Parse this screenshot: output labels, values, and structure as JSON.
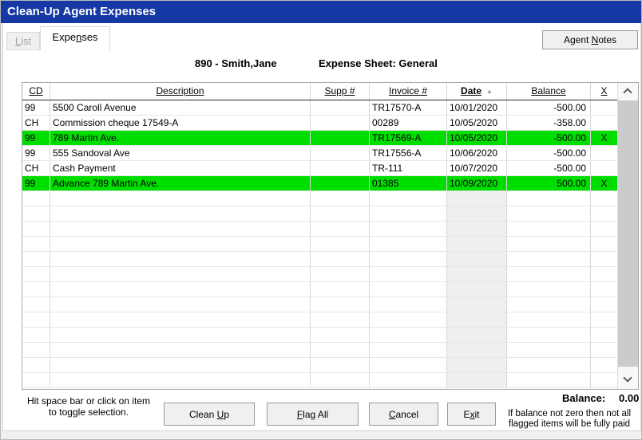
{
  "window": {
    "title": "Clean-Up Agent Expenses"
  },
  "tabs": [
    {
      "label": {
        "pre": "",
        "key": "L",
        "post": "ist"
      },
      "state": "disabled"
    },
    {
      "label": {
        "pre": "Expe",
        "key": "n",
        "post": "ses"
      },
      "state": "active"
    }
  ],
  "agent_notes": {
    "label": {
      "pre": "Agent ",
      "key": "N",
      "post": "otes"
    }
  },
  "header": {
    "agent": "890 - Smith,Jane",
    "sheet": "Expense Sheet: General"
  },
  "table": {
    "columns": [
      {
        "key": "cd",
        "label": "CD"
      },
      {
        "key": "description",
        "label": "Description"
      },
      {
        "key": "supp",
        "label": "Supp #"
      },
      {
        "key": "invoice",
        "label": "Invoice #"
      },
      {
        "key": "date",
        "label": "Date",
        "bold": true,
        "sorted": "asc"
      },
      {
        "key": "balance",
        "label": "Balance"
      },
      {
        "key": "x",
        "label": "X"
      }
    ],
    "rows": [
      {
        "cd": "99",
        "description": "5500 Caroll Avenue",
        "supp": "",
        "invoice": "TR17570-A",
        "date": "10/01/2020",
        "balance": "-500.00",
        "x": "",
        "highlighted": false,
        "focused": false
      },
      {
        "cd": "CH",
        "description": "Commission cheque 17549-A",
        "supp": "",
        "invoice": "00289",
        "date": "10/05/2020",
        "balance": "-358.00",
        "x": "",
        "highlighted": false,
        "focused": false
      },
      {
        "cd": "99",
        "description": "789 Martin Ave.",
        "supp": "",
        "invoice": "TR17569-A",
        "date": "10/05/2020",
        "balance": "-500.00",
        "x": "X",
        "highlighted": true,
        "focused": true
      },
      {
        "cd": "99",
        "description": "555 Sandoval Ave",
        "supp": "",
        "invoice": "TR17556-A",
        "date": "10/06/2020",
        "balance": "-500.00",
        "x": "",
        "highlighted": false,
        "focused": false
      },
      {
        "cd": "CH",
        "description": "Cash Payment",
        "supp": "",
        "invoice": "TR-111",
        "date": "10/07/2020",
        "balance": "-500.00",
        "x": "",
        "highlighted": false,
        "focused": false
      },
      {
        "cd": "99",
        "description": "Advance 789 Martin Ave.",
        "supp": "",
        "invoice": "01385",
        "date": "10/09/2020",
        "balance": "500.00",
        "x": "X",
        "highlighted": true,
        "focused": false
      }
    ],
    "empty_row_count": 13
  },
  "footer": {
    "hint_line1": "Hit space bar or click on item",
    "hint_line2": "to toggle selection.",
    "buttons": [
      {
        "label": {
          "pre": "Clean ",
          "key": "U",
          "post": "p"
        }
      },
      {
        "label": {
          "pre": "",
          "key": "F",
          "post": "lag All"
        }
      },
      {
        "label": {
          "pre": "",
          "key": "C",
          "post": "ancel"
        }
      },
      {
        "label": {
          "pre": "E",
          "key": "x",
          "post": "it"
        }
      }
    ],
    "balance_label": "Balance:",
    "balance_value": "0.00",
    "note_line1": "If balance not zero then not all",
    "note_line2": "flagged items will be fully paid"
  },
  "icons": {
    "sort_ascending": "▲"
  },
  "colors": {
    "titlebar_bg": "#1538A5",
    "titlebar_text": "#FFFFFF",
    "highlight_green": "#00DE00",
    "focus_blue": "#1468C8",
    "date_col_shade": "#EFEFEF"
  }
}
